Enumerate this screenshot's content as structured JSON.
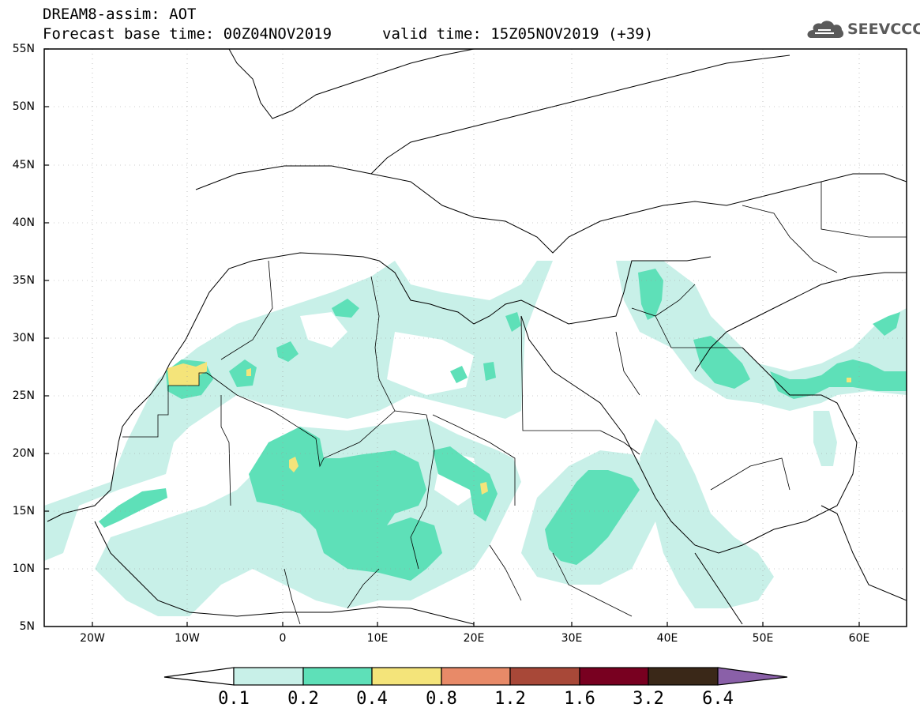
{
  "header": {
    "title_line1": "DREAM8-assim: AOT",
    "title_line2": "Forecast base time: 00Z04NOV2019",
    "valid_label": "valid time: 15Z05NOV2019 (+39)",
    "logo_text": "SEEVCCC",
    "logo_icon": "cloud-icon"
  },
  "map": {
    "lat_labels": [
      "55N",
      "50N",
      "45N",
      "40N",
      "35N",
      "30N",
      "25N",
      "20N",
      "15N",
      "10N",
      "5N"
    ],
    "lon_labels": [
      "20W",
      "10W",
      "0",
      "10E",
      "20E",
      "30E",
      "40E",
      "50E",
      "60E"
    ],
    "land_color": "#ffffff",
    "border_color": "#000000"
  },
  "colorbar": {
    "thresholds": [
      "0.1",
      "0.2",
      "0.4",
      "0.8",
      "1.2",
      "1.6",
      "3.2",
      "6.4"
    ],
    "colors": [
      "#ffffff",
      "#c8f0e8",
      "#5ee0b8",
      "#f4e47a",
      "#e88a68",
      "#a84838",
      "#780020",
      "#3a2818",
      "#8a60a8"
    ]
  }
}
